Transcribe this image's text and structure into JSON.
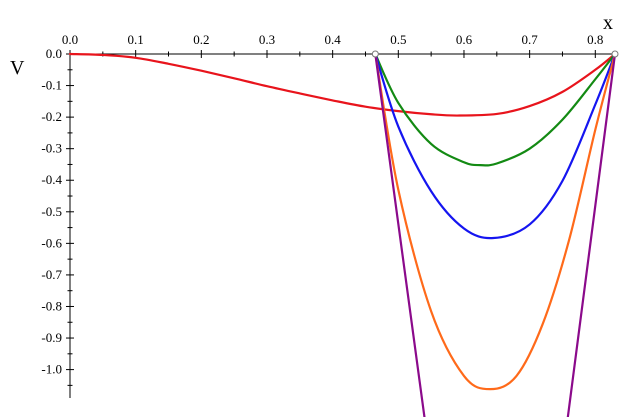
{
  "chart_data": {
    "type": "line",
    "xlabel": "x",
    "ylabel": "V",
    "xlim": [
      0,
      0.83
    ],
    "ylim": [
      -1.09,
      0
    ],
    "x_ticks": [
      "0.0",
      "0.1",
      "0.2",
      "0.3",
      "0.4",
      "0.5",
      "0.6",
      "0.7",
      "0.8"
    ],
    "y_ticks": [
      "0.0",
      "-0.1",
      "-0.2",
      "-0.3",
      "-0.4",
      "-0.5",
      "-0.6",
      "-0.7",
      "-0.8",
      "-0.9",
      "-1.0"
    ],
    "grid": false,
    "legend": "none",
    "series": [
      {
        "color": "#e8141c",
        "x": [
          0.0,
          0.05,
          0.1,
          0.15,
          0.2,
          0.25,
          0.3,
          0.35,
          0.4,
          0.45,
          0.5,
          0.55,
          0.59,
          0.65,
          0.7,
          0.75,
          0.8,
          0.83
        ],
        "y": [
          0.0,
          -0.003,
          -0.012,
          -0.031,
          -0.053,
          -0.077,
          -0.102,
          -0.125,
          -0.147,
          -0.167,
          -0.181,
          -0.191,
          -0.195,
          -0.19,
          -0.165,
          -0.12,
          -0.05,
          0.0
        ]
      },
      {
        "color": "#138a13",
        "x": [
          0.465,
          0.5,
          0.55,
          0.6,
          0.625,
          0.65,
          0.7,
          0.75,
          0.8,
          0.83
        ],
        "y": [
          0.0,
          -0.155,
          -0.285,
          -0.343,
          -0.352,
          -0.347,
          -0.3,
          -0.208,
          -0.08,
          0.0
        ]
      },
      {
        "color": "#1515f0",
        "x": [
          0.465,
          0.5,
          0.55,
          0.6,
          0.645,
          0.7,
          0.75,
          0.8,
          0.83
        ],
        "y": [
          0.0,
          -0.23,
          -0.435,
          -0.553,
          -0.583,
          -0.54,
          -0.402,
          -0.16,
          0.0
        ]
      },
      {
        "color": "#ff6a1a",
        "x": [
          0.465,
          0.5,
          0.55,
          0.6,
          0.64,
          0.68,
          0.72,
          0.76,
          0.8,
          0.83
        ],
        "y": [
          0.0,
          -0.43,
          -0.815,
          -1.02,
          -1.062,
          -1.02,
          -0.855,
          -0.59,
          -0.24,
          0.0
        ]
      },
      {
        "color": "#8b0a8b",
        "x": [
          0.465,
          0.54,
          0.758,
          0.83
        ],
        "y": [
          0.0,
          -1.09,
          -1.09,
          0.0
        ]
      }
    ],
    "markers": [
      {
        "x": 0.465,
        "y": 0.0
      },
      {
        "x": 0.83,
        "y": 0.0
      }
    ]
  }
}
